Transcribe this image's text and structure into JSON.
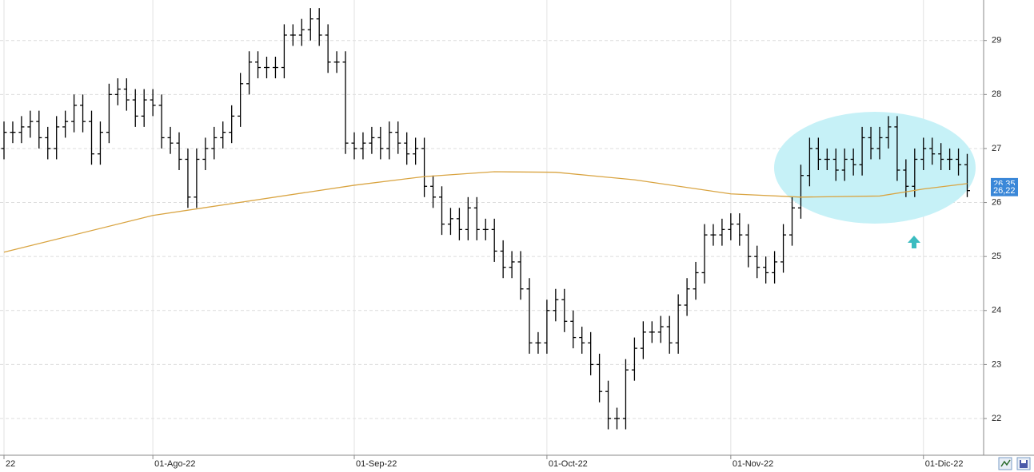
{
  "chart_data": {
    "type": "ohlc",
    "categories": [
      "22",
      null,
      null,
      null,
      null,
      null,
      null,
      null,
      null,
      null,
      null,
      null,
      null,
      null,
      null,
      null,
      null,
      "01-Ago-22",
      null,
      null,
      null,
      null,
      null,
      null,
      null,
      null,
      null,
      null,
      null,
      null,
      null,
      null,
      null,
      null,
      null,
      null,
      null,
      null,
      null,
      null,
      "01-Sep-22",
      null,
      null,
      null,
      null,
      null,
      null,
      null,
      null,
      null,
      null,
      null,
      null,
      null,
      null,
      null,
      null,
      null,
      null,
      null,
      null,
      null,
      "01-Oct-22",
      null,
      null,
      null,
      null,
      null,
      null,
      null,
      null,
      null,
      null,
      null,
      null,
      null,
      null,
      null,
      null,
      null,
      null,
      null,
      null,
      "01-Nov-22",
      null,
      null,
      null,
      null,
      null,
      null,
      null,
      null,
      null,
      null,
      null,
      null,
      null,
      null,
      null,
      null,
      null,
      null,
      null,
      null,
      null,
      "01-Dic-22",
      null,
      null,
      null,
      null,
      null
    ],
    "ohlc": {
      "color": "#000000",
      "open": [
        27.0,
        27.3,
        27.3,
        27.4,
        27.5,
        27.2,
        27.0,
        27.4,
        27.5,
        27.8,
        27.5,
        26.9,
        27.3,
        28.0,
        28.1,
        27.9,
        27.6,
        27.9,
        27.8,
        27.2,
        27.1,
        26.8,
        26.1,
        26.8,
        27.0,
        27.2,
        27.3,
        27.6,
        28.2,
        28.6,
        28.5,
        28.5,
        28.5,
        29.1,
        29.1,
        29.2,
        29.4,
        29.1,
        28.6,
        28.6,
        27.1,
        27.0,
        27.1,
        27.2,
        27.0,
        27.3,
        27.1,
        26.9,
        27.0,
        26.3,
        26.1,
        25.6,
        25.7,
        25.5,
        25.9,
        25.5,
        25.5,
        25.1,
        24.8,
        24.9,
        24.4,
        23.4,
        23.4,
        24.0,
        24.2,
        23.8,
        23.5,
        23.4,
        23.0,
        22.5,
        22.0,
        22.0,
        22.9,
        23.3,
        23.6,
        23.6,
        23.7,
        23.4,
        24.1,
        24.4,
        24.7,
        25.4,
        25.4,
        25.5,
        25.6,
        25.4,
        25.0,
        24.8,
        24.7,
        24.9,
        25.4,
        25.9,
        26.5,
        27.0,
        26.8,
        26.8,
        26.6,
        26.8,
        26.7,
        27.2,
        27.0,
        27.2,
        27.4,
        26.6,
        26.3,
        26.8,
        27.0,
        26.9,
        26.8,
        26.8,
        26.7
      ],
      "high": [
        27.5,
        27.5,
        27.6,
        27.7,
        27.7,
        27.4,
        27.6,
        27.7,
        28.0,
        28.0,
        27.7,
        27.5,
        28.2,
        28.3,
        28.3,
        28.1,
        28.1,
        28.1,
        28.0,
        27.4,
        27.3,
        27.0,
        27.0,
        27.2,
        27.4,
        27.5,
        27.8,
        28.4,
        28.8,
        28.8,
        28.7,
        28.7,
        29.3,
        29.3,
        29.4,
        29.6,
        29.6,
        29.3,
        28.8,
        28.8,
        27.3,
        27.3,
        27.4,
        27.4,
        27.5,
        27.5,
        27.3,
        27.2,
        27.2,
        26.5,
        26.3,
        25.9,
        25.9,
        26.1,
        26.1,
        25.7,
        25.7,
        25.3,
        25.1,
        25.1,
        24.6,
        23.6,
        24.2,
        24.4,
        24.4,
        24.0,
        23.7,
        23.6,
        23.2,
        22.7,
        22.2,
        23.1,
        23.5,
        23.8,
        23.8,
        23.9,
        23.9,
        24.3,
        24.6,
        24.9,
        25.6,
        25.6,
        25.7,
        25.8,
        25.8,
        25.6,
        25.2,
        25.0,
        25.1,
        25.6,
        26.1,
        26.7,
        27.2,
        27.2,
        27.0,
        27.0,
        27.0,
        27.0,
        27.4,
        27.4,
        27.4,
        27.6,
        27.6,
        26.8,
        27.0,
        27.2,
        27.2,
        27.1,
        27.0,
        27.0,
        26.9
      ],
      "low": [
        26.8,
        27.1,
        27.1,
        27.2,
        27.0,
        26.8,
        26.8,
        27.2,
        27.3,
        27.3,
        26.7,
        26.7,
        27.1,
        27.8,
        27.7,
        27.4,
        27.4,
        27.6,
        27.0,
        26.9,
        26.6,
        25.9,
        25.9,
        26.6,
        26.8,
        27.0,
        27.1,
        27.4,
        28.0,
        28.3,
        28.3,
        28.3,
        28.3,
        28.9,
        28.9,
        29.0,
        28.9,
        28.4,
        28.4,
        26.9,
        26.8,
        26.8,
        26.9,
        26.8,
        26.8,
        26.9,
        26.7,
        26.7,
        26.1,
        25.9,
        25.4,
        25.4,
        25.3,
        25.3,
        25.3,
        25.3,
        24.9,
        24.6,
        24.6,
        24.2,
        23.2,
        23.2,
        23.2,
        23.8,
        23.6,
        23.3,
        23.2,
        22.8,
        22.3,
        21.8,
        21.8,
        21.8,
        22.7,
        23.1,
        23.4,
        23.4,
        23.2,
        23.2,
        23.9,
        24.2,
        24.5,
        25.2,
        25.2,
        25.3,
        25.2,
        24.8,
        24.6,
        24.5,
        24.5,
        24.7,
        25.2,
        25.7,
        26.3,
        26.6,
        26.6,
        26.4,
        26.4,
        26.5,
        26.5,
        26.8,
        26.8,
        27.0,
        26.4,
        26.1,
        26.1,
        26.6,
        26.7,
        26.6,
        26.6,
        26.5,
        26.1
      ],
      "close": [
        27.3,
        27.3,
        27.4,
        27.5,
        27.2,
        27.0,
        27.4,
        27.5,
        27.8,
        27.5,
        26.9,
        27.3,
        28.0,
        28.1,
        27.9,
        27.6,
        27.9,
        27.8,
        27.2,
        27.1,
        26.8,
        26.1,
        26.8,
        27.0,
        27.2,
        27.3,
        27.6,
        28.2,
        28.6,
        28.5,
        28.5,
        28.5,
        29.1,
        29.1,
        29.2,
        29.4,
        29.1,
        28.6,
        28.6,
        27.1,
        27.0,
        27.1,
        27.2,
        27.0,
        27.3,
        27.1,
        26.9,
        27.0,
        26.3,
        26.1,
        25.6,
        25.7,
        25.5,
        25.9,
        25.5,
        25.5,
        25.1,
        24.8,
        24.9,
        24.4,
        23.4,
        23.4,
        24.0,
        24.2,
        23.8,
        23.5,
        23.4,
        23.0,
        22.5,
        22.0,
        22.0,
        22.9,
        23.3,
        23.6,
        23.6,
        23.7,
        23.4,
        24.1,
        24.4,
        24.7,
        25.4,
        25.4,
        25.5,
        25.6,
        25.4,
        25.0,
        24.8,
        24.7,
        24.9,
        25.4,
        25.9,
        26.5,
        27.0,
        26.8,
        26.8,
        26.6,
        26.8,
        26.7,
        27.2,
        27.0,
        27.2,
        27.4,
        26.6,
        26.3,
        26.8,
        27.0,
        26.9,
        26.8,
        26.8,
        26.7,
        26.22
      ],
      "last_label": "26,22"
    },
    "moving_average": {
      "color": "#d9a441",
      "x": [
        0,
        17,
        40,
        48,
        56,
        63,
        72,
        83,
        91,
        100,
        105,
        110
      ],
      "values": [
        25.08,
        25.76,
        26.32,
        26.48,
        26.57,
        26.56,
        26.42,
        26.16,
        26.1,
        26.12,
        26.25,
        26.35
      ],
      "last_label": "26,35"
    },
    "ylim": [
      21.32,
      29.75
    ],
    "yticks": [
      22,
      23,
      24,
      25,
      26,
      27,
      28,
      29
    ],
    "grid": true
  }
}
